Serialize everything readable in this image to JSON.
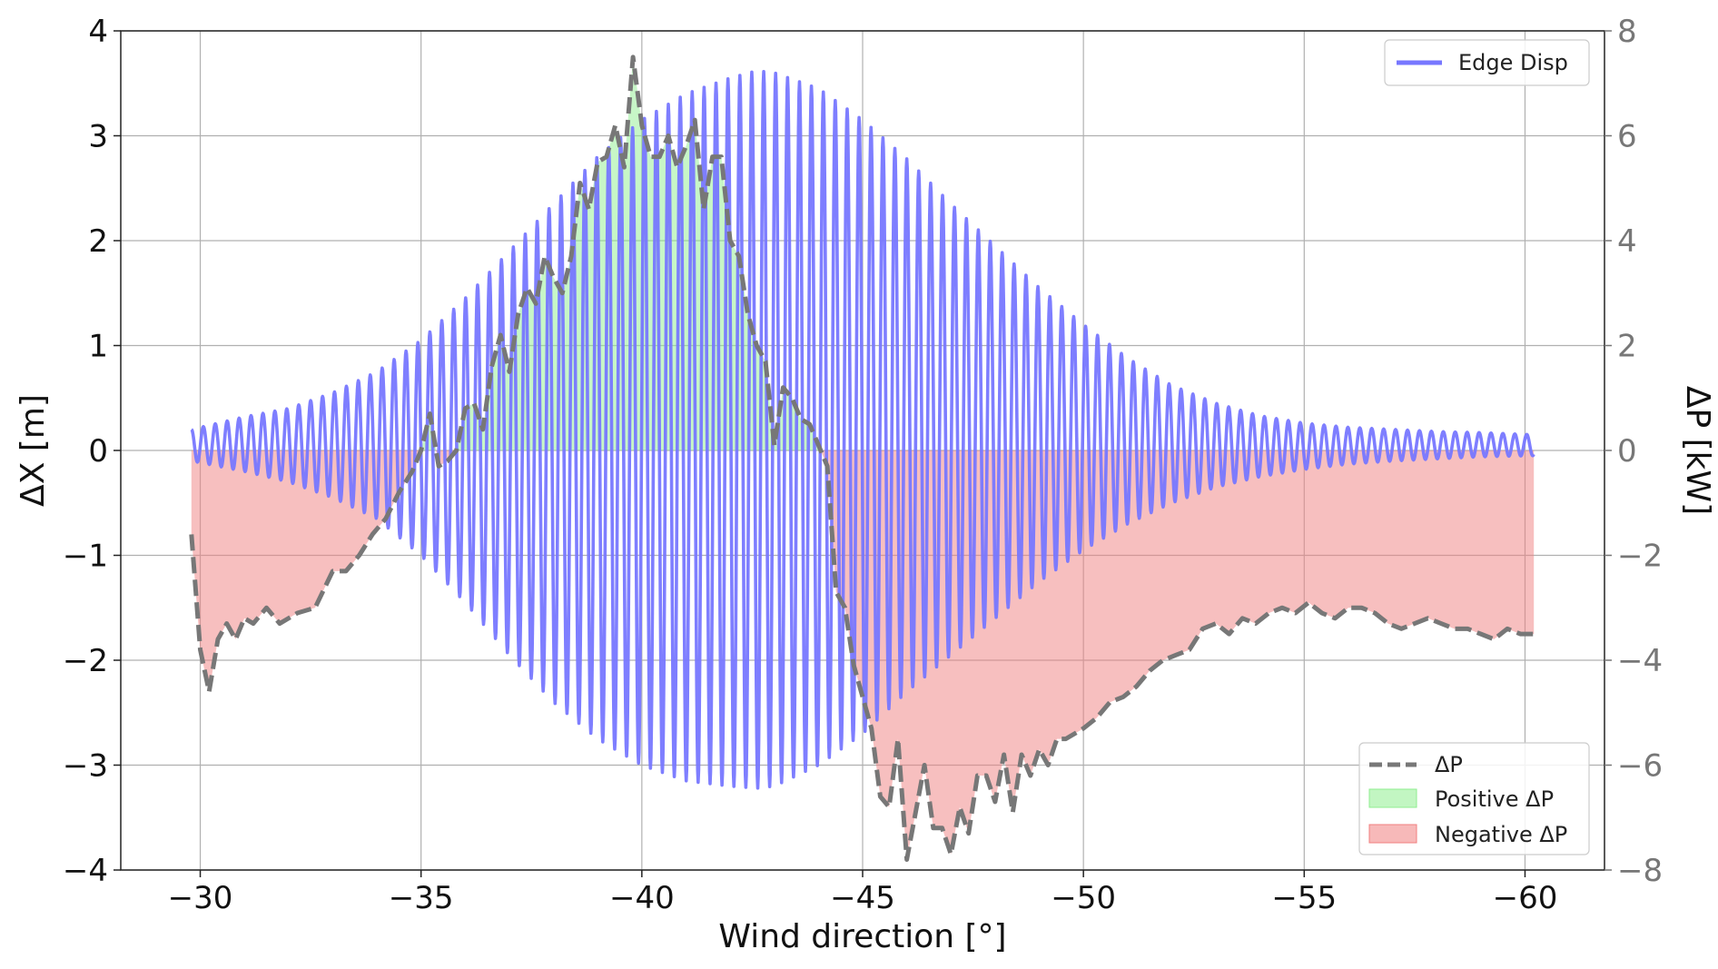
{
  "chart_data": {
    "type": "line",
    "x_axis": {
      "label": "Wind direction [°]",
      "lim": [
        -28.2,
        -61.8
      ],
      "ticks": [
        -30,
        -35,
        -40,
        -45,
        -50,
        -55,
        -60
      ],
      "tick_labels": [
        "−30",
        "−35",
        "−40",
        "−45",
        "−50",
        "−55",
        "−60"
      ]
    },
    "y_axis_left": {
      "label": "ΔX [m]",
      "lim": [
        -4,
        4
      ],
      "ticks": [
        -4,
        -3,
        -2,
        -1,
        0,
        1,
        2,
        3,
        4
      ],
      "tick_labels": [
        "−4",
        "−3",
        "−2",
        "−1",
        "0",
        "1",
        "2",
        "3",
        "4"
      ]
    },
    "y_axis_right": {
      "label": "ΔP [kW]",
      "lim": [
        -8,
        8
      ],
      "ticks": [
        -8,
        -6,
        -4,
        -2,
        0,
        2,
        4,
        6,
        8
      ],
      "tick_labels": [
        "−8",
        "−6",
        "−4",
        "−2",
        "0",
        "2",
        "4",
        "6",
        "8"
      ]
    },
    "grid": true,
    "series": [
      {
        "name": "Edge Disp",
        "axis": "left",
        "kind": "oscillation",
        "color": "#7777ff",
        "period_deg": 0.27,
        "envelope_x": [
          -29.8,
          -31,
          -32,
          -33,
          -34,
          -35,
          -36,
          -37,
          -38,
          -39,
          -40,
          -41,
          -42,
          -42.6,
          -43,
          -44,
          -45,
          -46,
          -47,
          -48,
          -49,
          -50,
          -51,
          -52,
          -53,
          -54,
          -55,
          -56,
          -57,
          -58,
          -59,
          -60.2
        ],
        "envelope_upper": [
          0.2,
          0.32,
          0.4,
          0.55,
          0.75,
          1.05,
          1.45,
          1.9,
          2.35,
          2.8,
          3.15,
          3.4,
          3.55,
          3.62,
          3.6,
          3.45,
          3.15,
          2.78,
          2.35,
          1.95,
          1.55,
          1.2,
          0.88,
          0.62,
          0.45,
          0.33,
          0.26,
          0.22,
          0.2,
          0.18,
          0.17,
          0.15
        ],
        "envelope_lower": [
          -0.1,
          -0.2,
          -0.3,
          -0.45,
          -0.65,
          -1.0,
          -1.45,
          -1.95,
          -2.4,
          -2.75,
          -3.0,
          -3.15,
          -3.2,
          -3.22,
          -3.2,
          -3.0,
          -2.7,
          -2.3,
          -1.95,
          -1.6,
          -1.25,
          -0.95,
          -0.7,
          -0.5,
          -0.35,
          -0.25,
          -0.18,
          -0.13,
          -0.1,
          -0.08,
          -0.06,
          -0.05
        ]
      },
      {
        "name": "ΔP",
        "axis": "right",
        "kind": "dashed-line",
        "color": "#777777",
        "x": [
          -29.8,
          -30.0,
          -30.2,
          -30.4,
          -30.6,
          -30.8,
          -31.0,
          -31.2,
          -31.5,
          -31.8,
          -32.2,
          -32.6,
          -33.0,
          -33.3,
          -33.6,
          -33.9,
          -34.2,
          -34.5,
          -34.8,
          -35.0,
          -35.2,
          -35.4,
          -35.6,
          -35.8,
          -36.0,
          -36.2,
          -36.4,
          -36.6,
          -36.8,
          -37.0,
          -37.2,
          -37.4,
          -37.6,
          -37.8,
          -38.0,
          -38.2,
          -38.4,
          -38.6,
          -38.8,
          -39.0,
          -39.2,
          -39.4,
          -39.6,
          -39.8,
          -40.0,
          -40.2,
          -40.4,
          -40.6,
          -40.8,
          -41.0,
          -41.2,
          -41.4,
          -41.6,
          -41.8,
          -42.0,
          -42.2,
          -42.4,
          -42.6,
          -42.8,
          -43.0,
          -43.2,
          -43.4,
          -43.6,
          -43.8,
          -44.0,
          -44.2,
          -44.4,
          -44.6,
          -44.8,
          -45.0,
          -45.2,
          -45.4,
          -45.6,
          -45.8,
          -46.0,
          -46.2,
          -46.4,
          -46.6,
          -46.8,
          -47.0,
          -47.2,
          -47.4,
          -47.6,
          -47.8,
          -48.0,
          -48.2,
          -48.4,
          -48.6,
          -48.8,
          -49.0,
          -49.2,
          -49.4,
          -49.6,
          -49.8,
          -50.0,
          -50.3,
          -50.6,
          -50.9,
          -51.2,
          -51.5,
          -51.8,
          -52.1,
          -52.4,
          -52.7,
          -53.0,
          -53.3,
          -53.6,
          -53.9,
          -54.2,
          -54.5,
          -54.8,
          -55.1,
          -55.4,
          -55.7,
          -56.0,
          -56.3,
          -56.6,
          -56.9,
          -57.2,
          -57.5,
          -57.8,
          -58.1,
          -58.4,
          -58.7,
          -59.0,
          -59.3,
          -59.6,
          -59.9,
          -60.2
        ],
        "y": [
          -1.6,
          -3.8,
          -4.6,
          -3.6,
          -3.3,
          -3.6,
          -3.2,
          -3.3,
          -3.0,
          -3.3,
          -3.1,
          -3.0,
          -2.3,
          -2.3,
          -2.0,
          -1.6,
          -1.3,
          -0.8,
          -0.4,
          0.0,
          0.7,
          -0.3,
          -0.2,
          0.0,
          0.8,
          0.9,
          0.4,
          1.6,
          2.2,
          1.5,
          2.6,
          3.1,
          2.8,
          3.7,
          3.3,
          3.0,
          3.7,
          5.1,
          4.6,
          5.5,
          5.6,
          6.2,
          5.4,
          7.5,
          6.2,
          5.6,
          5.6,
          6.0,
          5.4,
          5.8,
          6.3,
          4.6,
          5.6,
          5.6,
          4.0,
          3.7,
          2.6,
          2.0,
          1.7,
          0.1,
          1.2,
          1.0,
          0.6,
          0.5,
          0.1,
          -0.3,
          -2.7,
          -3.0,
          -4.1,
          -4.7,
          -5.3,
          -6.6,
          -6.8,
          -5.5,
          -7.8,
          -6.9,
          -6.0,
          -7.2,
          -7.2,
          -7.7,
          -6.8,
          -7.3,
          -6.2,
          -6.2,
          -6.7,
          -5.8,
          -6.9,
          -5.8,
          -6.2,
          -5.7,
          -6.0,
          -5.5,
          -5.5,
          -5.4,
          -5.3,
          -5.1,
          -4.8,
          -4.7,
          -4.5,
          -4.2,
          -4.0,
          -3.9,
          -3.8,
          -3.4,
          -3.3,
          -3.5,
          -3.2,
          -3.3,
          -3.1,
          -3.0,
          -3.1,
          -2.9,
          -3.1,
          -3.2,
          -3.0,
          -3.0,
          -3.1,
          -3.3,
          -3.4,
          -3.3,
          -3.2,
          -3.3,
          -3.4,
          -3.4,
          -3.5,
          -3.6,
          -3.4,
          -3.5,
          -3.5
        ]
      }
    ],
    "fills": [
      {
        "name": "Positive ΔP",
        "color": "#90ee90",
        "opacity": 0.5
      },
      {
        "name": "Negative ΔP",
        "color": "#f08080",
        "opacity": 0.5
      }
    ],
    "legends": [
      {
        "position": "top-right",
        "entries": [
          "Edge Disp"
        ]
      },
      {
        "position": "bottom-right",
        "entries": [
          "ΔP",
          "Positive ΔP",
          "Negative ΔP"
        ]
      }
    ]
  }
}
